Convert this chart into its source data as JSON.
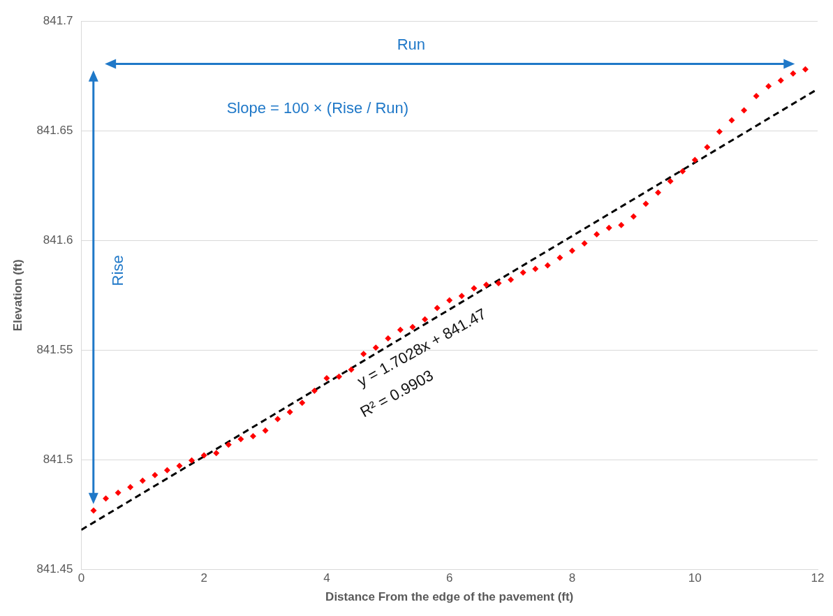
{
  "chart_data": {
    "type": "scatter",
    "xlabel": "Distance From the edge of the pavement (ft)",
    "ylabel": "Elevation (ft)",
    "xlim": [
      0,
      12
    ],
    "xticks": [
      0,
      2,
      4,
      6,
      8,
      10,
      12
    ],
    "ylim": [
      841.45,
      841.7
    ],
    "yticks": [
      841.45,
      841.5,
      841.55,
      841.6,
      841.65,
      841.7
    ],
    "grid": "y",
    "legend": false,
    "series": [
      {
        "color": "#ff0000",
        "marker": "diamond",
        "x": [
          0.2,
          0.4,
          0.6,
          0.8,
          1.0,
          1.2,
          1.4,
          1.6,
          1.8,
          2.0,
          2.2,
          2.4,
          2.6,
          2.8,
          3.0,
          3.2,
          3.4,
          3.6,
          3.8,
          4.0,
          4.2,
          4.4,
          4.6,
          4.8,
          5.0,
          5.2,
          5.4,
          5.6,
          5.8,
          6.0,
          6.2,
          6.4,
          6.6,
          6.8,
          7.0,
          7.2,
          7.4,
          7.6,
          7.8,
          8.0,
          8.2,
          8.4,
          8.6,
          8.8,
          9.0,
          9.2,
          9.4,
          9.6,
          9.8,
          10.0,
          10.2,
          10.4,
          10.6,
          10.8,
          11.0,
          11.2,
          11.4,
          11.6,
          11.8
        ],
        "values": [
          841.4768,
          841.4823,
          841.4849,
          841.4875,
          841.4904,
          841.493,
          841.4952,
          841.4972,
          841.4997,
          841.502,
          841.503,
          841.5068,
          841.5094,
          841.5107,
          841.5133,
          841.5185,
          841.5217,
          841.5259,
          841.5314,
          841.5372,
          841.5379,
          841.5411,
          841.5482,
          841.5511,
          841.5553,
          841.5592,
          841.5605,
          841.564,
          841.5692,
          841.5727,
          841.5747,
          841.5782,
          841.5798,
          841.5805,
          841.5821,
          841.5853,
          841.587,
          841.5886,
          841.5921,
          841.5953,
          841.5986,
          841.6028,
          841.6057,
          841.607,
          841.6109,
          841.6167,
          841.6218,
          841.627,
          841.6315,
          841.6367,
          841.6425,
          841.6496,
          841.6548,
          841.6593,
          841.6658,
          841.6703,
          841.6729,
          841.6761,
          841.678
        ]
      },
      {
        "type": "line",
        "color": "#000000",
        "line_style": "dashed",
        "marker": "none",
        "x": [
          0,
          12
        ],
        "values": [
          841.468,
          841.669
        ]
      }
    ],
    "annotations": [
      "Run",
      "Slope = 100 × (Rise / Run)",
      "Rise",
      "y = 1.7028x + 841.47",
      "R² = 0.9903"
    ]
  }
}
